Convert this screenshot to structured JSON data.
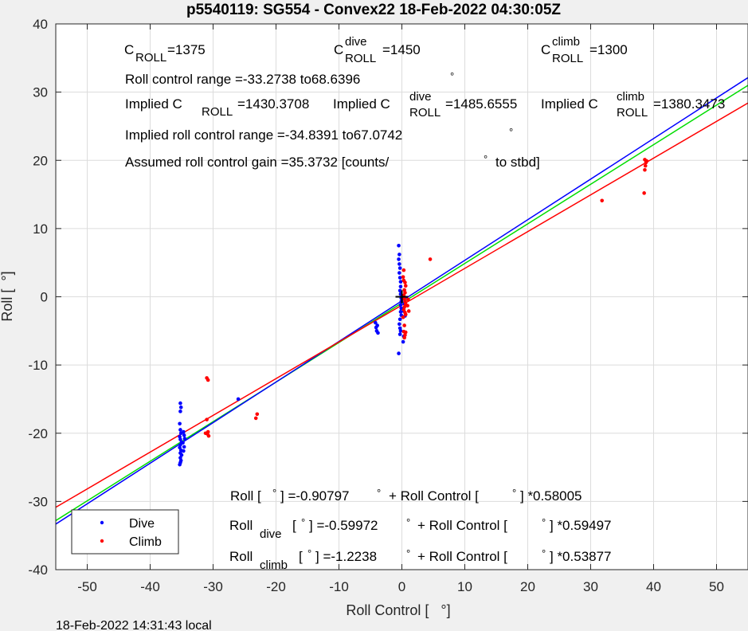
{
  "figure": {
    "title": "p5540119: SG554 - Convex22 18-Feb-2022 04:30:05Z",
    "footer": "18-Feb-2022 14:31:43 local",
    "annotations": {
      "c_roll": "=1375",
      "c_roll_dive": "=1450",
      "c_roll_climb": "=1300",
      "roll_control_range": "Roll control range =-33.2738 to68.6396",
      "implied_c_roll": "=1430.3708",
      "implied_c_roll_dive": "=1485.6555",
      "implied_c_roll_climb": "=1380.3473",
      "implied_roll_control_range": "Implied roll control range =-34.8391 to67.0742",
      "assumed_gain": "Assumed roll control gain =35.3732 [counts/",
      "assumed_gain_suffix": "to stbd]",
      "eq_all_prefix": "Roll [",
      "eq_all_mid": "] =-0.90797",
      "eq_all_suffix": "] *0.58005",
      "eq_dive_mid": "] =-0.59972",
      "eq_dive_suffix": "] *0.59497",
      "eq_climb_mid": "] =-1.2238",
      "eq_climb_suffix": "] *0.53877",
      "c_label": "C",
      "roll_sub": "ROLL",
      "dive_sup": "dive",
      "climb_sup": "climb",
      "implied_c_label": "Implied C",
      "roll_word": "Roll",
      "dive_sub": "dive",
      "climb_sub": "climb",
      "plus_rc": "+ Roll Control [",
      "deg": "°"
    }
  },
  "chart_data": {
    "type": "scatter",
    "title": "p5540119: SG554 - Convex22 18-Feb-2022 04:30:05Z",
    "xlabel": "Roll Control [   °]",
    "ylabel": "Roll [  °]",
    "xlim": [
      -55,
      55
    ],
    "ylim": [
      -40,
      40
    ],
    "xticks": [
      -50,
      -40,
      -30,
      -20,
      -10,
      0,
      10,
      20,
      30,
      40,
      50
    ],
    "yticks": [
      -40,
      -30,
      -20,
      -10,
      0,
      10,
      20,
      30,
      40
    ],
    "grid": true,
    "legend_position": "bottom-left",
    "colors": {
      "dive": "#0000ff",
      "climb": "#ff0000",
      "all_fit": "#00dd00",
      "origin_marker": "#000000"
    },
    "series": [
      {
        "name": "Dive",
        "color": "#0000ff",
        "points": [
          [
            -35.2,
            -15.6
          ],
          [
            -35.1,
            -16.2
          ],
          [
            -35.2,
            -16.8
          ],
          [
            -35.3,
            -18.6
          ],
          [
            -35.2,
            -19.5
          ],
          [
            -35.1,
            -20.0
          ],
          [
            -35.3,
            -20.5
          ],
          [
            -35.2,
            -20.9
          ],
          [
            -35.0,
            -21.3
          ],
          [
            -35.2,
            -21.7
          ],
          [
            -35.3,
            -22.1
          ],
          [
            -35.1,
            -22.5
          ],
          [
            -35.2,
            -22.9
          ],
          [
            -35.0,
            -23.2
          ],
          [
            -35.2,
            -23.6
          ],
          [
            -35.1,
            -24.0
          ],
          [
            -35.2,
            -24.3
          ],
          [
            -35.3,
            -24.6
          ],
          [
            -34.7,
            -19.8
          ],
          [
            -34.6,
            -20.3
          ],
          [
            -34.5,
            -20.8
          ],
          [
            -34.8,
            -21.4
          ],
          [
            -34.6,
            -22.0
          ],
          [
            -34.7,
            -22.6
          ],
          [
            -26.0,
            -15.0
          ],
          [
            -4.2,
            -3.8
          ],
          [
            -4.1,
            -4.5
          ],
          [
            -4.0,
            -5.0
          ],
          [
            -3.8,
            -5.3
          ],
          [
            -3.9,
            -4.2
          ],
          [
            -0.5,
            7.5
          ],
          [
            -0.4,
            6.2
          ],
          [
            -0.5,
            5.5
          ],
          [
            -0.4,
            4.8
          ],
          [
            -0.3,
            4.2
          ],
          [
            -0.4,
            3.5
          ],
          [
            -0.3,
            2.8
          ],
          [
            -0.2,
            2.2
          ],
          [
            -0.2,
            1.5
          ],
          [
            -0.3,
            0.9
          ],
          [
            -0.2,
            0.4
          ],
          [
            -0.1,
            -0.2
          ],
          [
            -0.1,
            -0.7
          ],
          [
            -0.2,
            -1.2
          ],
          [
            -0.1,
            -1.7
          ],
          [
            -0.2,
            -2.2
          ],
          [
            -0.1,
            -2.7
          ],
          [
            -0.3,
            -3.3
          ],
          [
            -0.4,
            -4.0
          ],
          [
            -0.3,
            -4.6
          ],
          [
            -0.2,
            -5.0
          ],
          [
            -0.3,
            -5.5
          ],
          [
            -0.5,
            -8.3
          ],
          [
            0.2,
            -6.6
          ],
          [
            0.3,
            -5.8
          ],
          [
            0.4,
            -1.0
          ],
          [
            0.5,
            -2.8
          ],
          [
            0.3,
            -2.1
          ]
        ]
      },
      {
        "name": "Climb",
        "color": "#ff0000",
        "points": [
          [
            -31.0,
            -11.9
          ],
          [
            -30.8,
            -12.2
          ],
          [
            -31.0,
            -18.0
          ],
          [
            -30.8,
            -19.8
          ],
          [
            -30.9,
            -20.1
          ],
          [
            -30.7,
            -20.4
          ],
          [
            -31.2,
            -20.0
          ],
          [
            -23.0,
            -17.2
          ],
          [
            -23.2,
            -17.8
          ],
          [
            0.3,
            3.9
          ],
          [
            0.2,
            2.9
          ],
          [
            0.3,
            2.4
          ],
          [
            0.5,
            2.1
          ],
          [
            0.6,
            1.6
          ],
          [
            0.4,
            1.0
          ],
          [
            0.5,
            0.6
          ],
          [
            0.3,
            0.2
          ],
          [
            0.4,
            -0.3
          ],
          [
            0.5,
            -0.7
          ],
          [
            0.6,
            -1.1
          ],
          [
            0.4,
            -1.5
          ],
          [
            0.3,
            -1.9
          ],
          [
            0.5,
            -2.3
          ],
          [
            0.6,
            -2.6
          ],
          [
            0.2,
            -3.0
          ],
          [
            0.4,
            -4.2
          ],
          [
            0.3,
            -5.1
          ],
          [
            0.5,
            -5.6
          ],
          [
            0.4,
            -6.0
          ],
          [
            0.6,
            -5.2
          ],
          [
            1.0,
            -0.4
          ],
          [
            0.9,
            -1.3
          ],
          [
            1.1,
            -2.1
          ],
          [
            4.5,
            5.5
          ],
          [
            31.8,
            14.1
          ],
          [
            38.5,
            15.2
          ],
          [
            38.6,
            18.6
          ],
          [
            38.7,
            19.2
          ],
          [
            38.8,
            19.7
          ],
          [
            38.6,
            20.1
          ],
          [
            38.9,
            19.9
          ]
        ]
      }
    ],
    "fits": [
      {
        "name": "Roll",
        "intercept": -0.90797,
        "slope": 0.58005,
        "color": "#00dd00"
      },
      {
        "name": "Roll dive",
        "intercept": -0.59972,
        "slope": 0.59497,
        "color": "#0000ff"
      },
      {
        "name": "Roll climb",
        "intercept": -1.2238,
        "slope": 0.53877,
        "color": "#ff0000"
      }
    ],
    "legend": [
      "Dive",
      "Climb"
    ]
  }
}
